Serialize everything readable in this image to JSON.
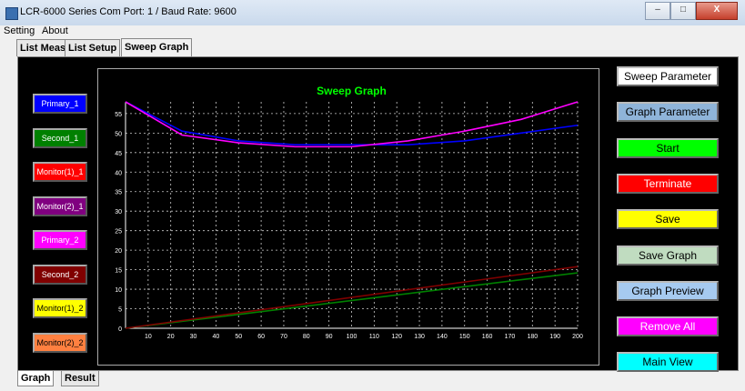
{
  "window": {
    "title": "LCR-6000 Series   Com Port: 1  / Baud Rate: 9600",
    "minimize": "–",
    "maximize": "□",
    "close": "X"
  },
  "menu": [
    "Setting",
    "About"
  ],
  "tabs": [
    "List Meas",
    "List Setup",
    "Sweep Graph"
  ],
  "legend": [
    {
      "label": "Primary_1",
      "bg": "#0000ff",
      "fg": "#ffffff"
    },
    {
      "label": "Second_1",
      "bg": "#008000",
      "fg": "#ffffff"
    },
    {
      "label": "Monitor(1)_1",
      "bg": "#ff0000",
      "fg": "#ffffff"
    },
    {
      "label": "Monitor(2)_1",
      "bg": "#800080",
      "fg": "#ffffff"
    },
    {
      "label": "Primary_2",
      "bg": "#ff00ff",
      "fg": "#ffffff"
    },
    {
      "label": "Second_2",
      "bg": "#800000",
      "fg": "#ffffff"
    },
    {
      "label": "Monitor(1)_2",
      "bg": "#ffff00",
      "fg": "#000000"
    },
    {
      "label": "Monitor(2)_2",
      "bg": "#ff8040",
      "fg": "#000000"
    }
  ],
  "buttons": [
    {
      "label": "Sweep Parameter",
      "bg": "#ffffff",
      "fg": "#000000"
    },
    {
      "label": "Graph Parameter",
      "bg": "#8fb4d9",
      "fg": "#000000"
    },
    {
      "label": "Start",
      "bg": "#00ff00",
      "fg": "#000000"
    },
    {
      "label": "Terminate",
      "bg": "#ff0000",
      "fg": "#ffffff"
    },
    {
      "label": "Save",
      "bg": "#ffff00",
      "fg": "#000000"
    },
    {
      "label": "Save Graph",
      "bg": "#c0dcc0",
      "fg": "#000000"
    },
    {
      "label": "Graph Preview",
      "bg": "#a6caf0",
      "fg": "#000000"
    },
    {
      "label": "Remove All",
      "bg": "#ff00ff",
      "fg": "#ffffff"
    },
    {
      "label": "Main View",
      "bg": "#00ffff",
      "fg": "#000000"
    }
  ],
  "bottom_tabs": [
    "Graph",
    "Result"
  ],
  "chart_data": {
    "type": "line",
    "title": "Sweep Graph",
    "xlim": [
      0,
      200
    ],
    "ylim": [
      0,
      58
    ],
    "xticks": [
      10,
      20,
      30,
      40,
      50,
      60,
      70,
      80,
      90,
      100,
      110,
      120,
      130,
      140,
      150,
      160,
      170,
      180,
      190,
      200
    ],
    "yticks": [
      0,
      5,
      10,
      15,
      20,
      25,
      30,
      35,
      40,
      45,
      50,
      55
    ],
    "grid": true,
    "title_color": "#00ff00",
    "series": [
      {
        "color": "#0000ff",
        "x": [
          0,
          25,
          50,
          75,
          100,
          125,
          150,
          175,
          200
        ],
        "y": [
          58,
          50.5,
          48,
          47,
          47,
          47,
          48,
          50,
          52
        ]
      },
      {
        "color": "#ff00ff",
        "x": [
          0,
          25,
          50,
          75,
          100,
          125,
          150,
          175,
          200
        ],
        "y": [
          58,
          49.5,
          47.5,
          46.5,
          46.5,
          48,
          50.5,
          53.5,
          58
        ]
      },
      {
        "color": "#008000",
        "x": [
          0,
          200
        ],
        "y": [
          0,
          14.2
        ]
      },
      {
        "color": "#800000",
        "x": [
          0,
          200
        ],
        "y": [
          0,
          15.8
        ]
      }
    ]
  }
}
